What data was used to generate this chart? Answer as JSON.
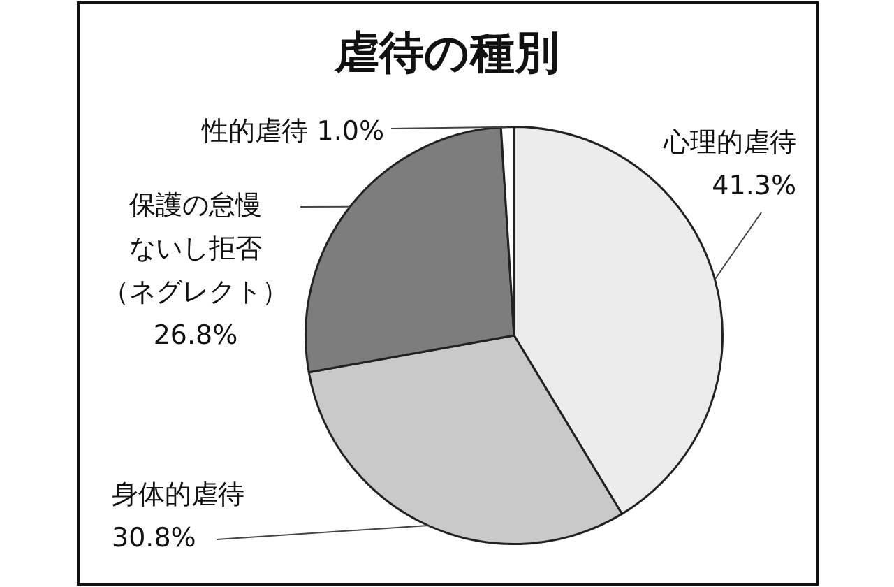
{
  "chart_data": {
    "type": "pie",
    "title": "虐待の種別",
    "categories": [
      "心理的虐待",
      "身体的虐待",
      "保護の怠慢ないし拒否（ネグレクト）",
      "性的虐待"
    ],
    "values": [
      41.3,
      30.8,
      26.8,
      1.0
    ],
    "value_labels": [
      "41.3%",
      "30.8%",
      "26.8%",
      "1.0%"
    ],
    "colors": [
      "#ececec",
      "#c9c9c9",
      "#7d7d7d",
      "#ffffff"
    ],
    "legend": false
  }
}
